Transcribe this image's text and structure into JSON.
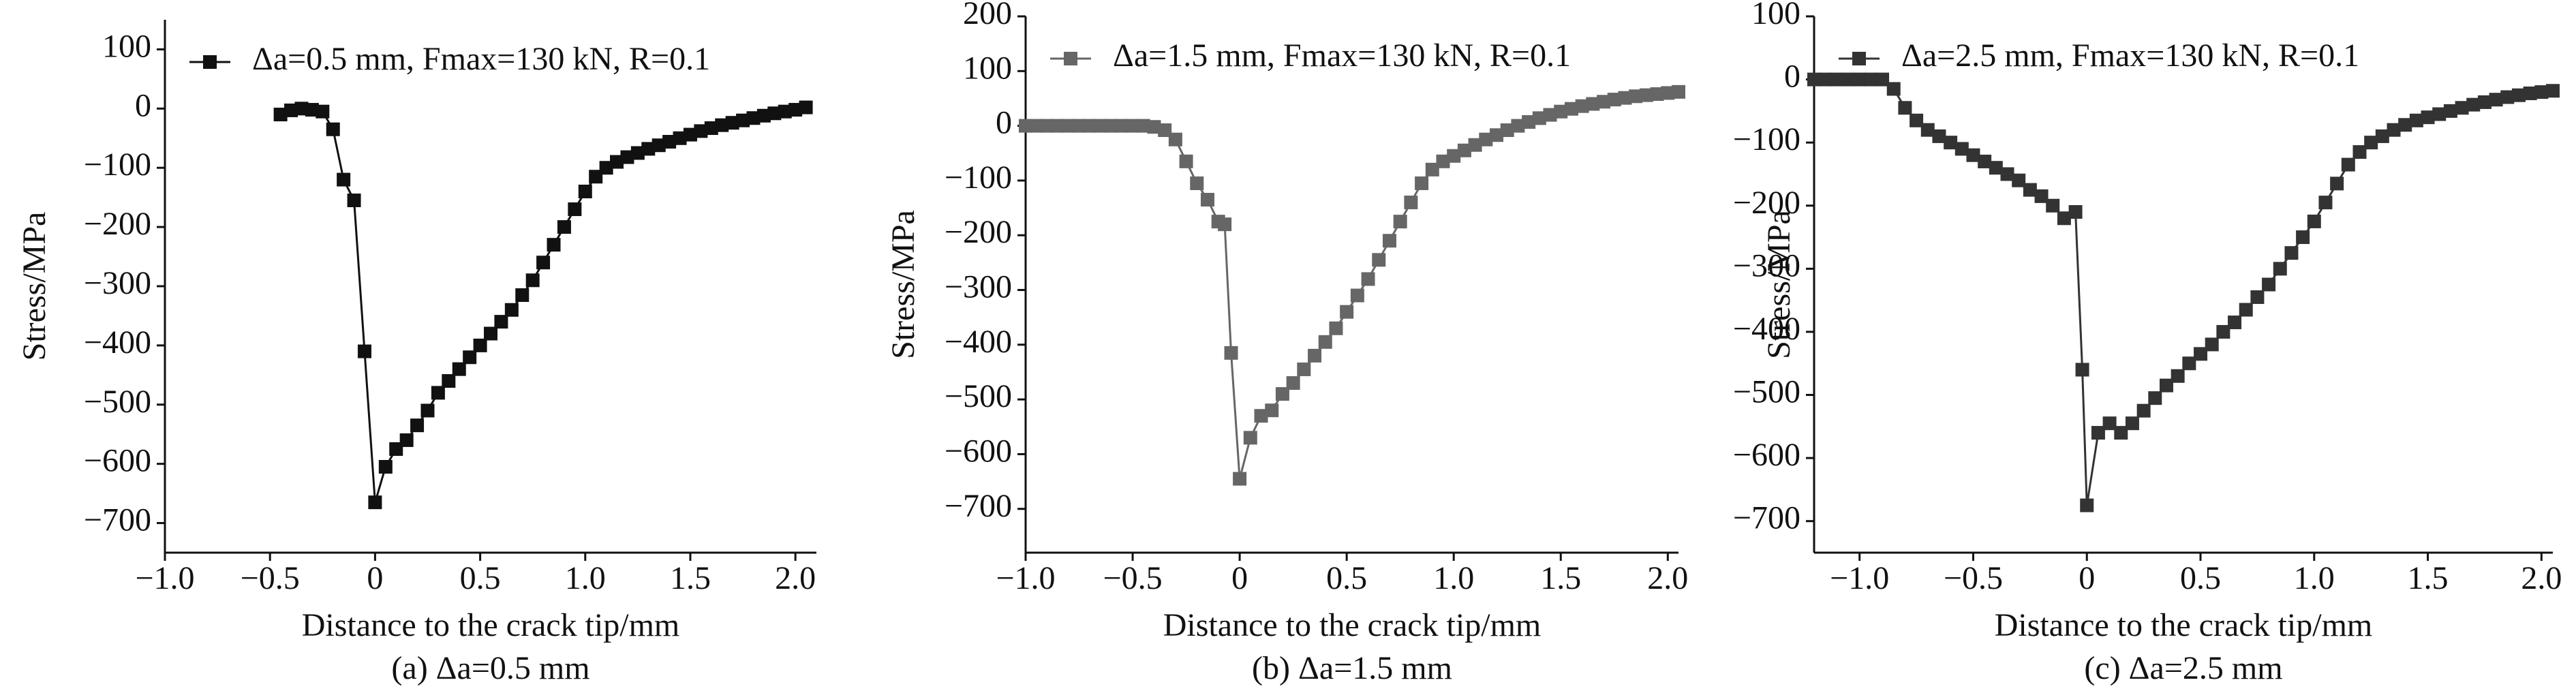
{
  "chart_data": [
    {
      "type": "line",
      "caption": "(a) Δa=0.5 mm",
      "xlabel": "Distance to the crack tip/mm",
      "ylabel": "Stress/MPa",
      "x": [
        -0.45,
        -0.4,
        -0.35,
        -0.3,
        -0.25,
        -0.2,
        -0.15,
        -0.1,
        -0.05,
        0,
        0.05,
        0.1,
        0.15,
        0.2,
        0.25,
        0.3,
        0.35,
        0.4,
        0.45,
        0.5,
        0.55,
        0.6,
        0.65,
        0.7,
        0.75,
        0.8,
        0.85,
        0.9,
        0.95,
        1,
        1.05,
        1.1,
        1.15,
        1.2,
        1.25,
        1.3,
        1.35,
        1.4,
        1.45,
        1.5,
        1.55,
        1.6,
        1.65,
        1.7,
        1.75,
        1.8,
        1.85,
        1.9,
        1.95,
        2,
        2.05
      ],
      "series": [
        {
          "name": "Δa=0.5 mm, Fmax=130 kN, R=0.1",
          "color": "#111111",
          "values": [
            -10,
            -3,
            0,
            -2,
            -5,
            -35,
            -120,
            -155,
            -410,
            -665,
            -605,
            -575,
            -560,
            -535,
            -510,
            -480,
            -460,
            -440,
            -420,
            -400,
            -380,
            -360,
            -340,
            -315,
            -290,
            -260,
            -230,
            -200,
            -170,
            -140,
            -115,
            -100,
            -90,
            -82,
            -75,
            -68,
            -62,
            -56,
            -50,
            -44,
            -38,
            -33,
            -28,
            -24,
            -20,
            -16,
            -12,
            -8,
            -5,
            -2,
            2
          ]
        }
      ],
      "xlim": [
        -1,
        2.1
      ],
      "ylim": [
        -750,
        150
      ],
      "xticks": [
        {
          "value": -1,
          "label": "−1.0"
        },
        {
          "value": -0.5,
          "label": "−0.5"
        },
        0,
        0.5,
        {
          "value": 1,
          "label": "1.0"
        },
        1.5,
        {
          "value": 2,
          "label": "2.0"
        }
      ],
      "yticks": [
        {
          "value": -700,
          "label": "−700"
        },
        {
          "value": -600,
          "label": "−600"
        },
        {
          "value": -500,
          "label": "−500"
        },
        {
          "value": -400,
          "label": "−400"
        },
        {
          "value": -300,
          "label": "−300"
        },
        {
          "value": -200,
          "label": "−200"
        },
        {
          "value": -100,
          "label": "−100"
        },
        0,
        100
      ]
    },
    {
      "type": "line",
      "caption": "(b) Δa=1.5 mm",
      "xlabel": "Distance to the crack tip/mm",
      "ylabel": "Stress/MPa",
      "x": [
        -1,
        -0.95,
        -0.9,
        -0.85,
        -0.8,
        -0.75,
        -0.7,
        -0.65,
        -0.6,
        -0.55,
        -0.5,
        -0.45,
        -0.4,
        -0.35,
        -0.3,
        -0.25,
        -0.2,
        -0.15,
        -0.1,
        -0.07,
        -0.04,
        0,
        0.05,
        0.1,
        0.15,
        0.2,
        0.25,
        0.3,
        0.35,
        0.4,
        0.45,
        0.5,
        0.55,
        0.6,
        0.65,
        0.7,
        0.75,
        0.8,
        0.85,
        0.9,
        0.95,
        1,
        1.05,
        1.1,
        1.15,
        1.2,
        1.25,
        1.3,
        1.35,
        1.4,
        1.45,
        1.5,
        1.55,
        1.6,
        1.65,
        1.7,
        1.75,
        1.8,
        1.85,
        1.9,
        1.95,
        2,
        2.05
      ],
      "series": [
        {
          "name": "Δa=1.5 mm, Fmax=130 kN, R=0.1",
          "color": "#666666",
          "values": [
            0,
            0,
            0,
            0,
            0,
            0,
            0,
            0,
            0,
            0,
            0,
            0,
            -2,
            -8,
            -25,
            -65,
            -105,
            -135,
            -175,
            -180,
            -415,
            -645,
            -570,
            -530,
            -520,
            -490,
            -470,
            -445,
            -420,
            -395,
            -370,
            -340,
            -310,
            -280,
            -245,
            -210,
            -175,
            -140,
            -105,
            -80,
            -65,
            -55,
            -45,
            -35,
            -25,
            -17,
            -8,
            0,
            7,
            14,
            20,
            26,
            31,
            36,
            40,
            44,
            48,
            51,
            54,
            56,
            58,
            60,
            62
          ]
        }
      ],
      "xlim": [
        -1,
        2.05
      ],
      "ylim": [
        -780,
        200
      ],
      "xticks": [
        {
          "value": -1,
          "label": "−1.0"
        },
        {
          "value": -0.5,
          "label": "−0.5"
        },
        0,
        0.5,
        {
          "value": 1,
          "label": "1.0"
        },
        1.5,
        {
          "value": 2,
          "label": "2.0"
        }
      ],
      "yticks": [
        {
          "value": -700,
          "label": "−700"
        },
        {
          "value": -600,
          "label": "−600"
        },
        {
          "value": -500,
          "label": "−500"
        },
        {
          "value": -400,
          "label": "−400"
        },
        {
          "value": -300,
          "label": "−300"
        },
        {
          "value": -200,
          "label": "−200"
        },
        {
          "value": -100,
          "label": "−100"
        },
        0,
        100,
        200
      ]
    },
    {
      "type": "line",
      "caption": "(c) Δa=2.5 mm",
      "xlabel": "Distance to the crack tip/mm",
      "ylabel": "Stress/MPa",
      "x": [
        -1.2,
        -1.15,
        -1.1,
        -1.05,
        -1,
        -0.95,
        -0.9,
        -0.85,
        -0.8,
        -0.75,
        -0.7,
        -0.65,
        -0.6,
        -0.55,
        -0.5,
        -0.45,
        -0.4,
        -0.35,
        -0.3,
        -0.25,
        -0.2,
        -0.15,
        -0.1,
        -0.05,
        -0.02,
        0,
        0.05,
        0.1,
        0.15,
        0.2,
        0.25,
        0.3,
        0.35,
        0.4,
        0.45,
        0.5,
        0.55,
        0.6,
        0.65,
        0.7,
        0.75,
        0.8,
        0.85,
        0.9,
        0.95,
        1,
        1.05,
        1.1,
        1.15,
        1.2,
        1.25,
        1.3,
        1.35,
        1.4,
        1.45,
        1.5,
        1.55,
        1.6,
        1.65,
        1.7,
        1.75,
        1.8,
        1.85,
        1.9,
        1.95,
        2,
        2.05
      ],
      "series": [
        {
          "name": "Δa=2.5 mm, Fmax=130 kN, R=0.1",
          "color": "#333333",
          "values": [
            0,
            0,
            0,
            0,
            0,
            0,
            0,
            -15,
            -45,
            -65,
            -80,
            -90,
            -100,
            -110,
            -120,
            -130,
            -140,
            -150,
            -160,
            -175,
            -185,
            -200,
            -220,
            -210,
            -460,
            -675,
            -560,
            -545,
            -560,
            -545,
            -525,
            -505,
            -485,
            -470,
            -450,
            -435,
            -420,
            -400,
            -385,
            -365,
            -345,
            -325,
            -300,
            -275,
            -250,
            -225,
            -195,
            -165,
            -135,
            -115,
            -100,
            -90,
            -80,
            -72,
            -65,
            -60,
            -55,
            -50,
            -45,
            -40,
            -36,
            -32,
            -28,
            -25,
            -22,
            -20,
            -18
          ]
        }
      ],
      "xlim": [
        -1.2,
        2.05
      ],
      "ylim": [
        -750,
        100
      ],
      "xticks": [
        {
          "value": -1,
          "label": "−1.0"
        },
        {
          "value": -0.5,
          "label": "−0.5"
        },
        0,
        0.5,
        {
          "value": 1,
          "label": "1.0"
        },
        1.5,
        {
          "value": 2,
          "label": "2.0"
        }
      ],
      "yticks": [
        {
          "value": -700,
          "label": "−700"
        },
        {
          "value": -600,
          "label": "−600"
        },
        {
          "value": -500,
          "label": "−500"
        },
        {
          "value": -400,
          "label": "−400"
        },
        {
          "value": -300,
          "label": "−300"
        },
        {
          "value": -200,
          "label": "−200"
        },
        {
          "value": -100,
          "label": "−100"
        },
        0,
        100
      ]
    }
  ]
}
